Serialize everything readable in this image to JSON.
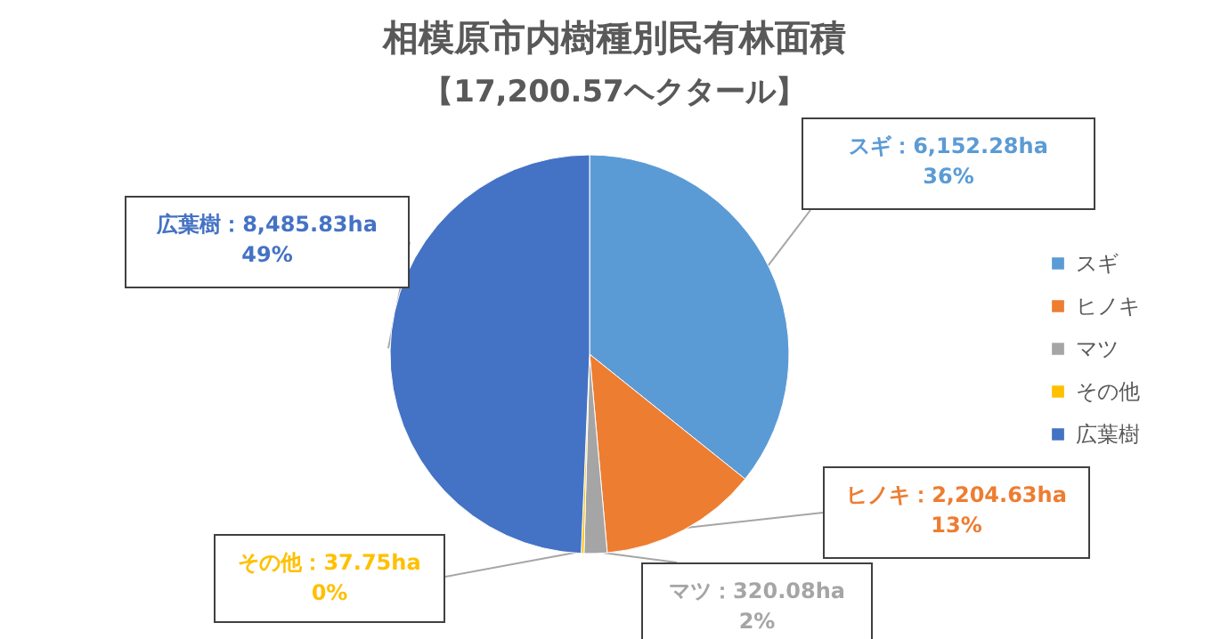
{
  "chart_data": {
    "type": "pie",
    "title": "相模原市内樹種別民有林面積",
    "subtitle": "【17,200.57ヘクタール】",
    "categories": [
      "スギ",
      "ヒノキ",
      "マツ",
      "その他",
      "広葉樹"
    ],
    "values": [
      6152.28,
      2204.63,
      320.08,
      37.75,
      8485.83
    ],
    "colors": [
      "#5b9bd5",
      "#ed7d31",
      "#a5a5a5",
      "#ffc000",
      "#4472c4"
    ],
    "value_labels": [
      "スギ：6,152.28ha\n36%",
      "ヒノキ：2,204.63ha\n13%",
      "マツ：320.08ha\n2%",
      "その他：37.75ha\n0%",
      "広葉樹：8,485.83ha\n49%"
    ],
    "legend": "right"
  }
}
